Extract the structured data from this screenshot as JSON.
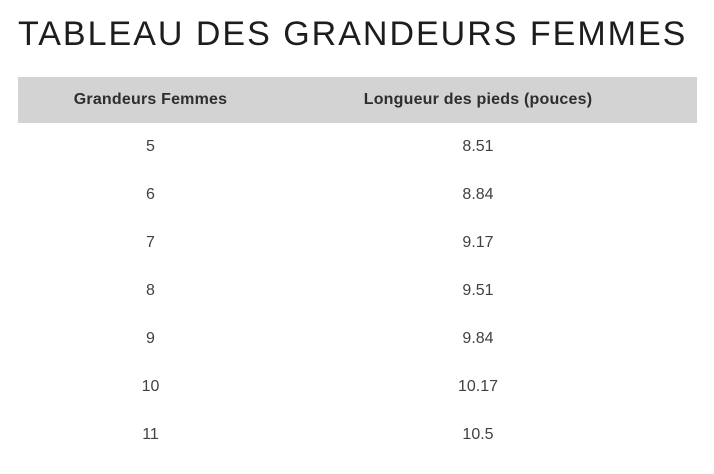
{
  "page": {
    "title": "TABLEAU DES GRANDEURS FEMMES"
  },
  "table": {
    "columns": [
      "Grandeurs Femmes",
      "Longueur des pieds (pouces)"
    ],
    "rows": [
      [
        "5",
        "8.51"
      ],
      [
        "6",
        "8.84"
      ],
      [
        "7",
        "9.17"
      ],
      [
        "8",
        "9.51"
      ],
      [
        "9",
        "9.84"
      ],
      [
        "10",
        "10.17"
      ],
      [
        "11",
        "10.5"
      ]
    ]
  },
  "theme": {
    "title_color": "#1d1d1f",
    "header_bg": "#d3d3d3",
    "header_text": "#2e2e30",
    "body_text": "#404049"
  }
}
